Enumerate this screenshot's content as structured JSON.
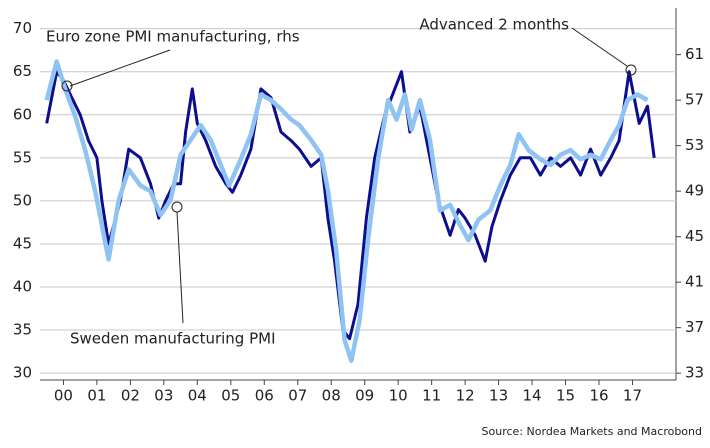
{
  "chart_data": {
    "type": "line",
    "series": [
      {
        "name": "Sweden manufacturing PMI",
        "color": "#0d0d8f",
        "axis": "y",
        "x": [
          -0.5,
          -0.2,
          0,
          0.25,
          0.5,
          0.75,
          1.0,
          1.15,
          1.35,
          1.7,
          1.95,
          2.3,
          2.6,
          2.85,
          3.05,
          3.3,
          3.5,
          3.65,
          3.85,
          4.0,
          4.25,
          4.55,
          4.85,
          5.05,
          5.3,
          5.6,
          5.9,
          6.2,
          6.5,
          6.8,
          7.05,
          7.4,
          7.7,
          7.9,
          8.1,
          8.35,
          8.55,
          8.8,
          9.05,
          9.3,
          9.6,
          9.9,
          10.1,
          10.35,
          10.65,
          10.95,
          11.2,
          11.55,
          11.8,
          12.0,
          12.3,
          12.6,
          12.8,
          13.05,
          13.35,
          13.65,
          13.95,
          14.25,
          14.55,
          14.85,
          15.15,
          15.45,
          15.75,
          16.05,
          16.35,
          16.6,
          16.9,
          17.2,
          17.45,
          17.65
        ],
        "values": [
          59,
          65,
          64,
          62,
          60,
          57,
          55,
          50,
          45,
          50,
          56,
          55,
          52,
          48,
          50,
          52,
          52,
          58,
          63,
          59,
          57,
          54,
          52,
          51,
          53,
          56,
          63,
          62,
          58,
          57,
          56,
          54,
          55,
          48,
          43,
          35,
          34,
          38,
          48,
          55,
          60,
          63,
          65,
          58,
          61,
          55,
          50,
          46,
          49,
          48,
          46,
          43,
          47,
          50,
          53,
          55,
          55,
          53,
          55,
          54,
          55,
          53,
          56,
          53,
          55,
          57,
          65,
          59,
          61,
          55
        ]
      },
      {
        "name": "Euro zone PMI manufacturing, rhs",
        "color": "#8fc3f2",
        "axis": "y2",
        "x": [
          -0.5,
          -0.2,
          0.05,
          0.36,
          0.65,
          0.95,
          1.35,
          1.65,
          1.95,
          2.3,
          2.6,
          2.9,
          3.2,
          3.5,
          3.8,
          4.1,
          4.4,
          4.7,
          4.95,
          5.3,
          5.6,
          5.9,
          6.2,
          6.5,
          6.8,
          7.05,
          7.4,
          7.7,
          7.9,
          8.15,
          8.4,
          8.6,
          8.85,
          9.1,
          9.4,
          9.7,
          9.95,
          10.2,
          10.4,
          10.65,
          10.95,
          11.25,
          11.55,
          11.85,
          12.1,
          12.4,
          12.75,
          13.05,
          13.35,
          13.6,
          13.9,
          14.25,
          14.55,
          14.85,
          15.15,
          15.45,
          15.75,
          16.05,
          16.35,
          16.6,
          16.85,
          17.15,
          17.45
        ],
        "values": [
          57,
          60.4,
          58,
          55.5,
          52.6,
          49,
          43,
          48.2,
          50.9,
          49.5,
          49,
          46.9,
          48.2,
          52.2,
          53.5,
          54.8,
          53.5,
          51.3,
          49.5,
          51.8,
          54,
          57.5,
          57,
          56.2,
          55.3,
          54.8,
          53.5,
          52.2,
          49.1,
          43.8,
          35.9,
          34.1,
          37.7,
          44.7,
          51.8,
          57,
          55.3,
          57.5,
          54.4,
          57,
          53.5,
          47.3,
          47.8,
          46,
          44.7,
          46.5,
          47.3,
          49.5,
          51.3,
          54,
          52.6,
          51.8,
          51.3,
          52.2,
          52.6,
          51.8,
          52.2,
          51.8,
          53.5,
          54.8,
          57,
          57.5,
          57
        ]
      }
    ],
    "xlim": [
      -0.7,
      18.3
    ],
    "xticks": [
      {
        "value": 0,
        "label": "00"
      },
      {
        "value": 1,
        "label": "01"
      },
      {
        "value": 2,
        "label": "02"
      },
      {
        "value": 3,
        "label": "03"
      },
      {
        "value": 4,
        "label": "04"
      },
      {
        "value": 5,
        "label": "05"
      },
      {
        "value": 6,
        "label": "06"
      },
      {
        "value": 7,
        "label": "07"
      },
      {
        "value": 8,
        "label": "08"
      },
      {
        "value": 9,
        "label": "09"
      },
      10,
      11,
      12,
      13,
      14,
      15,
      16,
      17
    ],
    "ylim": [
      29.2,
      72.4
    ],
    "yticks": [
      30,
      35,
      40,
      45,
      50,
      55,
      60,
      65,
      70
    ],
    "y2lim": [
      32.4,
      65.1
    ],
    "y2ticks": [
      33,
      37,
      41,
      45,
      49,
      53,
      57,
      61
    ],
    "grid": true,
    "annotations": [
      "Euro zone PMI manufacturing, rhs",
      "Sweden manufacturing PMI",
      "Advanced 2 months"
    ],
    "source": "Source: Nordea Markets and Macrobond"
  }
}
